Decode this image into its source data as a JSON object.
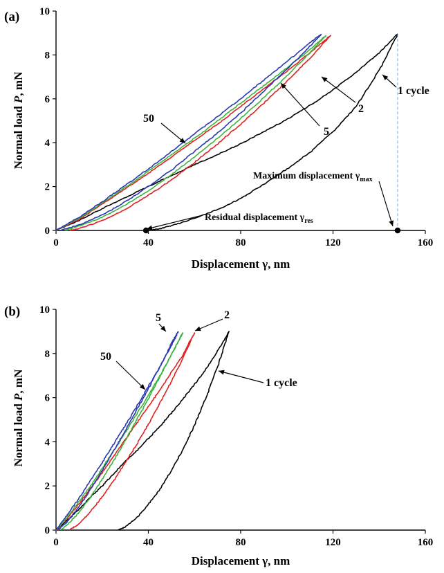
{
  "chart_data": [
    {
      "panel_label": "(a)",
      "type": "line",
      "xlabel": "Displacement γ, nm",
      "ylabel_prefix": "Normal load ",
      "ylabel_symbol": "P",
      "ylabel_suffix": ", mN",
      "xlim": [
        0,
        160
      ],
      "ylim": [
        0,
        10
      ],
      "x_ticks": [
        0,
        40,
        80,
        120,
        160
      ],
      "y_ticks": [
        0,
        2,
        4,
        6,
        8,
        10
      ],
      "series": [
        {
          "color": "#000000",
          "loading": {
            "x": [
              0,
              10,
              20,
              30,
              40,
              50,
              60,
              70,
              80,
              90,
              100,
              110,
              120,
              130,
              140,
              148
            ],
            "y": [
              0,
              0.45,
              1.0,
              1.5,
              2.0,
              2.5,
              3.0,
              3.45,
              3.95,
              4.5,
              5.05,
              5.7,
              6.4,
              7.2,
              8.1,
              8.95
            ]
          },
          "unloading": {
            "x": [
              148,
              140,
              130,
              120,
              110,
              100,
              90,
              80,
              70,
              60,
              50,
              45,
              40
            ],
            "y": [
              8.95,
              7.3,
              5.65,
              4.5,
              3.55,
              2.8,
              2.1,
              1.45,
              0.95,
              0.55,
              0.22,
              0.08,
              0
            ]
          }
        },
        {
          "color": "#e02020",
          "loading": {
            "x": [
              0,
              10,
              20,
              30,
              40,
              50,
              60,
              70,
              80,
              90,
              100,
              110,
              119
            ],
            "y": [
              0,
              0.5,
              1.2,
              1.9,
              2.6,
              3.35,
              4.1,
              4.85,
              5.65,
              6.45,
              7.25,
              8.1,
              8.9
            ]
          },
          "unloading": {
            "x": [
              119,
              110,
              100,
              90,
              80,
              70,
              60,
              50,
              40,
              30,
              20,
              10,
              6
            ],
            "y": [
              8.9,
              7.85,
              6.8,
              5.8,
              4.85,
              3.95,
              3.1,
              2.3,
              1.6,
              0.95,
              0.45,
              0.08,
              0
            ]
          }
        },
        {
          "color": "#3cb43c",
          "loading": {
            "x": [
              0,
              10,
              20,
              30,
              40,
              50,
              60,
              70,
              80,
              90,
              100,
              110,
              117
            ],
            "y": [
              0,
              0.55,
              1.25,
              1.95,
              2.7,
              3.45,
              4.2,
              5.0,
              5.8,
              6.6,
              7.4,
              8.25,
              8.9
            ]
          },
          "unloading": {
            "x": [
              117,
              110,
              100,
              90,
              80,
              70,
              60,
              50,
              40,
              30,
              20,
              10,
              4
            ],
            "y": [
              8.9,
              8.1,
              7.05,
              6.05,
              5.1,
              4.2,
              3.35,
              2.55,
              1.8,
              1.15,
              0.6,
              0.2,
              0
            ]
          }
        },
        {
          "color": "#2838b0",
          "loading": {
            "x": [
              0,
              10,
              20,
              30,
              40,
              50,
              60,
              70,
              80,
              90,
              100,
              110,
              115
            ],
            "y": [
              0,
              0.6,
              1.3,
              2.05,
              2.8,
              3.6,
              4.4,
              5.2,
              6.0,
              6.85,
              7.7,
              8.55,
              8.95
            ]
          },
          "unloading": {
            "x": [
              115,
              110,
              100,
              90,
              80,
              70,
              60,
              50,
              40,
              30,
              20,
              10,
              2
            ],
            "y": [
              8.95,
              8.4,
              7.35,
              6.35,
              5.35,
              4.45,
              3.6,
              2.75,
              2.0,
              1.3,
              0.7,
              0.25,
              0
            ]
          }
        }
      ],
      "markers": [
        {
          "x": 39,
          "y": 0
        },
        {
          "x": 148,
          "y": 0
        }
      ],
      "vline_x": 148,
      "annotations": {
        "cycle_50": "50",
        "cycle_2": "2",
        "cycle_5": "5",
        "cycle_1": "1 cycle",
        "max_disp": "Maximum displacement γ",
        "max_sub": "max",
        "res_disp": "Residual displacement γ",
        "res_sub": "res"
      }
    },
    {
      "panel_label": "(b)",
      "type": "line",
      "xlabel": "Displacement γ, nm",
      "ylabel_prefix": "Normal load ",
      "ylabel_symbol": "P",
      "ylabel_suffix": ", mN",
      "xlim": [
        0,
        160
      ],
      "ylim": [
        0,
        10
      ],
      "x_ticks": [
        0,
        40,
        80,
        120,
        160
      ],
      "y_ticks": [
        0,
        2,
        4,
        6,
        8,
        10
      ],
      "series": [
        {
          "color": "#000000",
          "loading": {
            "x": [
              0,
              5,
              10,
              15,
              20,
              25,
              30,
              35,
              40,
              45,
              50,
              55,
              60,
              65,
              70,
              75
            ],
            "y": [
              0,
              0.45,
              0.95,
              1.5,
              2.0,
              2.55,
              3.1,
              3.6,
              4.15,
              4.7,
              5.3,
              5.95,
              6.6,
              7.3,
              8.1,
              9.0
            ]
          },
          "unloading": {
            "x": [
              75,
              70,
              65,
              60,
              55,
              50,
              45,
              40,
              35,
              30,
              27
            ],
            "y": [
              9.0,
              7.4,
              6.0,
              4.75,
              3.65,
              2.7,
              1.85,
              1.15,
              0.55,
              0.15,
              0
            ]
          }
        },
        {
          "color": "#e02020",
          "loading": {
            "x": [
              0,
              5,
              10,
              15,
              20,
              25,
              30,
              35,
              40,
              45,
              50,
              55,
              60
            ],
            "y": [
              0,
              0.55,
              1.2,
              1.9,
              2.6,
              3.35,
              4.1,
              4.85,
              5.6,
              6.35,
              7.15,
              7.95,
              8.95
            ]
          },
          "unloading": {
            "x": [
              60,
              55,
              50,
              45,
              40,
              35,
              30,
              25,
              20,
              15,
              10,
              6
            ],
            "y": [
              8.95,
              7.8,
              6.75,
              5.75,
              4.8,
              3.9,
              3.05,
              2.25,
              1.5,
              0.85,
              0.3,
              0
            ]
          }
        },
        {
          "color": "#3cb43c",
          "loading": {
            "x": [
              0,
              5,
              10,
              15,
              20,
              25,
              30,
              35,
              40,
              45,
              50,
              55
            ],
            "y": [
              0,
              0.6,
              1.3,
              2.0,
              2.8,
              3.6,
              4.4,
              5.25,
              6.1,
              7.0,
              7.95,
              8.95
            ]
          },
          "unloading": {
            "x": [
              55,
              50,
              45,
              40,
              35,
              30,
              25,
              20,
              15,
              10,
              5,
              2
            ],
            "y": [
              8.95,
              7.95,
              6.95,
              5.95,
              5.0,
              4.05,
              3.15,
              2.3,
              1.5,
              0.8,
              0.25,
              0
            ]
          }
        },
        {
          "color": "#2838b0",
          "loading": {
            "x": [
              0,
              5,
              10,
              15,
              20,
              25,
              30,
              35,
              40,
              45,
              50,
              53
            ],
            "y": [
              0,
              0.7,
              1.45,
              2.25,
              3.05,
              3.9,
              4.75,
              5.6,
              6.5,
              7.4,
              8.35,
              9.0
            ]
          },
          "unloading": {
            "x": [
              53,
              50,
              45,
              40,
              35,
              30,
              25,
              20,
              15,
              10,
              5,
              1
            ],
            "y": [
              9.0,
              8.45,
              7.4,
              6.4,
              5.45,
              4.5,
              3.6,
              2.7,
              1.85,
              1.05,
              0.4,
              0
            ]
          }
        }
      ],
      "annotations": {
        "cycle_50": "50",
        "cycle_2": "2",
        "cycle_5": "5",
        "cycle_1": "1 cycle"
      }
    }
  ]
}
